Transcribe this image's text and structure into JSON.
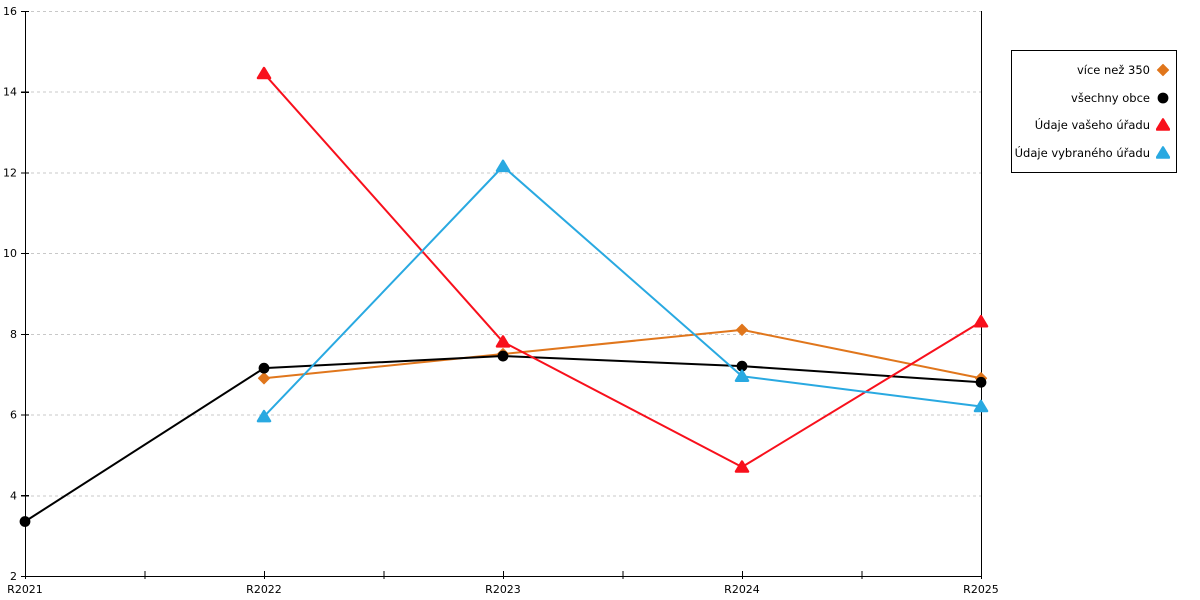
{
  "chart_data": {
    "type": "line",
    "title": "",
    "xlabel": "",
    "ylabel": "",
    "categories": [
      "R2021",
      "R2022",
      "R2023",
      "R2024",
      "R2025"
    ],
    "series": [
      {
        "name": "více než 350",
        "color": "#E0761C",
        "marker": "diamond",
        "values": [
          null,
          6.9,
          7.5,
          8.1,
          6.9
        ]
      },
      {
        "name": "všechny obce",
        "color": "#000000",
        "marker": "circle",
        "values": [
          3.35,
          7.15,
          7.45,
          7.2,
          6.8
        ]
      },
      {
        "name": "Údaje vašeho úřadu",
        "color": "#F8101C",
        "marker": "triangle",
        "values": [
          null,
          14.45,
          7.8,
          4.7,
          8.3
        ]
      },
      {
        "name": "Údaje vybraného úřadu",
        "color": "#29A9E1",
        "marker": "triangle",
        "values": [
          null,
          5.95,
          12.15,
          6.95,
          6.2
        ]
      }
    ],
    "ylim": [
      2,
      16
    ],
    "ytick_step": 2,
    "ytick_labels": [
      "2",
      "4",
      "6",
      "8",
      "10",
      "12",
      "14",
      "16"
    ],
    "grid": "horizontal-dashed",
    "legend_position": "outside-right",
    "legend_entries": [
      "více než 350",
      "všechny obce",
      "Údaje vašeho úřadu",
      "Údaje vybraného úřadu"
    ]
  },
  "colors": {
    "background": "#FFFFFF",
    "axis": "#000000",
    "grid": "#C8C8C8",
    "legend_border": "#000000",
    "text": "#000000"
  }
}
